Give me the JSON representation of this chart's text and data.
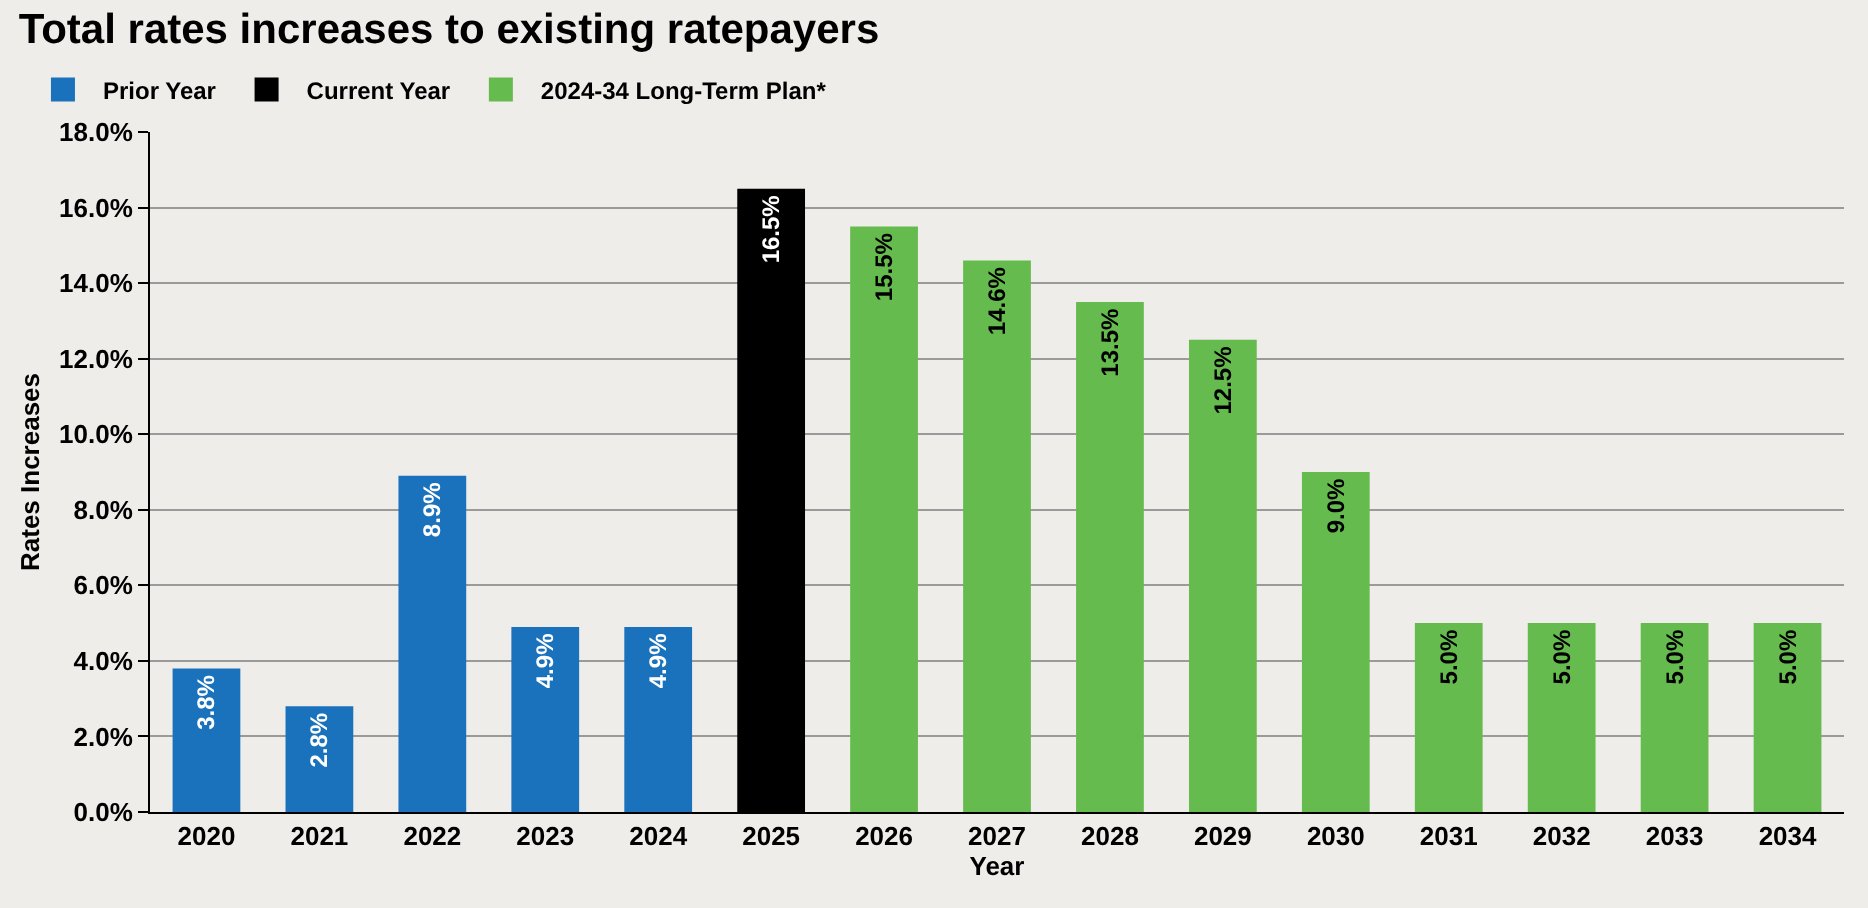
{
  "chart_data": {
    "type": "bar",
    "title": "Total rates increases to existing ratepayers",
    "xlabel": "Year",
    "ylabel": "Rates Increases",
    "categories": [
      "2020",
      "2021",
      "2022",
      "2023",
      "2024",
      "2025",
      "2026",
      "2027",
      "2028",
      "2029",
      "2030",
      "2031",
      "2032",
      "2033",
      "2034"
    ],
    "series": [
      {
        "name": "Prior Year",
        "color": "#1a72bd",
        "values": [
          3.8,
          2.8,
          8.9,
          4.9,
          4.9,
          null,
          null,
          null,
          null,
          null,
          null,
          null,
          null,
          null,
          null
        ],
        "value_labels": [
          "3.8%",
          "2.8%",
          "8.9%",
          "4.9%",
          "4.9%",
          null,
          null,
          null,
          null,
          null,
          null,
          null,
          null,
          null,
          null
        ]
      },
      {
        "name": "Current Year",
        "color": "#000000",
        "values": [
          null,
          null,
          null,
          null,
          null,
          16.5,
          null,
          null,
          null,
          null,
          null,
          null,
          null,
          null,
          null
        ],
        "value_labels": [
          null,
          null,
          null,
          null,
          null,
          "16.5%",
          null,
          null,
          null,
          null,
          null,
          null,
          null,
          null,
          null
        ]
      },
      {
        "name": "2024-34 Long-Term Plan*",
        "color": "#65bb4d",
        "values": [
          null,
          null,
          null,
          null,
          null,
          null,
          15.5,
          14.6,
          13.5,
          12.5,
          9.0,
          5.0,
          5.0,
          5.0,
          5.0
        ],
        "value_labels": [
          null,
          null,
          null,
          null,
          null,
          null,
          "15.5%",
          "14.6%",
          "13.5%",
          "12.5%",
          "9.0%",
          "5.0%",
          "5.0%",
          "5.0%",
          "5.0%"
        ]
      }
    ],
    "ylim": [
      0,
      18
    ],
    "yticks": [
      {
        "value": 0,
        "label": "0.0%"
      },
      {
        "value": 2,
        "label": "2.0%"
      },
      {
        "value": 4,
        "label": "4.0%"
      },
      {
        "value": 6,
        "label": "6.0%"
      },
      {
        "value": 8,
        "label": "8.0%"
      },
      {
        "value": 10,
        "label": "10.0%"
      },
      {
        "value": 12,
        "label": "12.0%"
      },
      {
        "value": 14,
        "label": "14.0%"
      },
      {
        "value": 16,
        "label": "16.0%"
      },
      {
        "value": 18,
        "label": "18.0%"
      }
    ],
    "grid": "y",
    "legend": "top left"
  }
}
